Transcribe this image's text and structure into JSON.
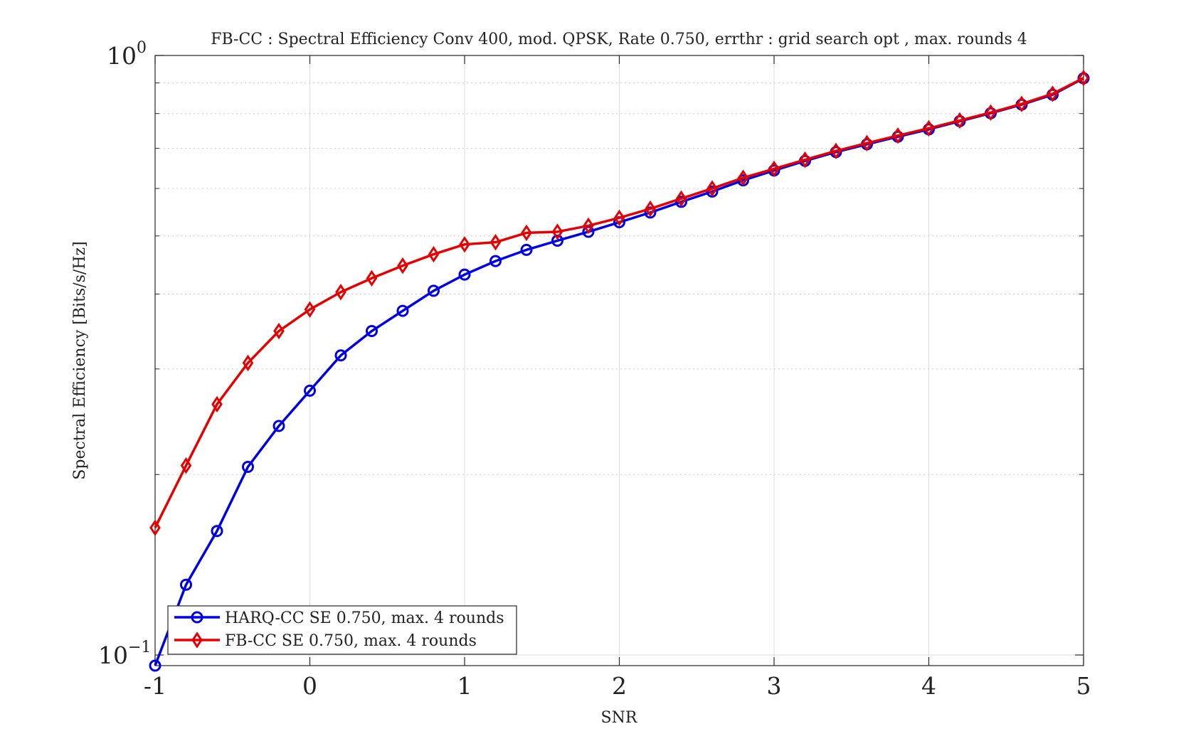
{
  "chart_data": {
    "type": "line",
    "title": "FB-CC : Spectral Efficiency Conv 400, mod. QPSK, Rate 0.750, errthr : grid search opt , max. rounds 4",
    "xlabel": "SNR",
    "ylabel": "Spectral Efficiency [Bits/s/Hz]",
    "xlim": [
      -1,
      5
    ],
    "ylim": [
      0.096,
      1.0
    ],
    "yscale": "log",
    "grid": true,
    "legend_position": "bottom-left",
    "x_ticks": [
      -1,
      0,
      1,
      2,
      3,
      4,
      5
    ],
    "x_tick_labels": [
      "-1",
      "0",
      "1",
      "2",
      "3",
      "4",
      "5"
    ],
    "y_ticks": [
      0.1,
      1.0
    ],
    "y_tick_base": "10",
    "y_tick_exponents": [
      "−1",
      "0"
    ],
    "x": [
      -1.0,
      -0.8,
      -0.6,
      -0.4,
      -0.2,
      0.0,
      0.2,
      0.4,
      0.6,
      0.8,
      1.0,
      1.2,
      1.4,
      1.6,
      1.8,
      2.0,
      2.2,
      2.4,
      2.6,
      2.8,
      3.0,
      3.2,
      3.4,
      3.6,
      3.8,
      4.0,
      4.2,
      4.4,
      4.6,
      4.8,
      5.0
    ],
    "series": [
      {
        "name": "HARQ-CC SE 0.750, max. 4 rounds",
        "color": "#0000e6",
        "marker": "circle",
        "values": [
          0.096,
          0.131,
          0.161,
          0.206,
          0.241,
          0.276,
          0.316,
          0.347,
          0.375,
          0.405,
          0.431,
          0.454,
          0.474,
          0.491,
          0.508,
          0.527,
          0.547,
          0.57,
          0.593,
          0.619,
          0.643,
          0.667,
          0.69,
          0.711,
          0.732,
          0.753,
          0.777,
          0.801,
          0.828,
          0.86,
          0.916
        ]
      },
      {
        "name": "FB-CC SE 0.750, max. 4 rounds",
        "color": "#e60000",
        "marker": "diamond",
        "values": [
          0.163,
          0.207,
          0.262,
          0.307,
          0.347,
          0.377,
          0.403,
          0.425,
          0.446,
          0.466,
          0.484,
          0.488,
          0.506,
          0.508,
          0.52,
          0.536,
          0.555,
          0.577,
          0.6,
          0.625,
          0.647,
          0.67,
          0.693,
          0.714,
          0.735,
          0.756,
          0.779,
          0.803,
          0.83,
          0.863,
          0.917
        ]
      }
    ]
  }
}
